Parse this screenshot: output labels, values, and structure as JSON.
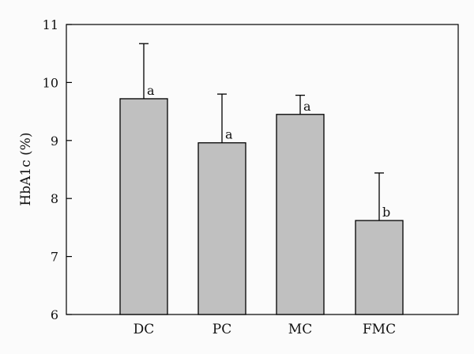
{
  "chart_data": {
    "type": "bar",
    "title": "",
    "xlabel": "",
    "ylabel": "HbA1c (%)",
    "ylim": [
      6,
      11
    ],
    "yticks": [
      6,
      7,
      8,
      9,
      10,
      11
    ],
    "categories": [
      "DC",
      "PC",
      "MC",
      "FMC"
    ],
    "values": [
      9.72,
      8.96,
      9.45,
      7.62
    ],
    "error_upper": [
      0.95,
      0.84,
      0.33,
      0.82
    ],
    "significance": [
      "a",
      "a",
      "a",
      "b"
    ],
    "grid": false,
    "legend": "none",
    "bar_color": "#c0c0c0",
    "edge_color": "#000000"
  }
}
